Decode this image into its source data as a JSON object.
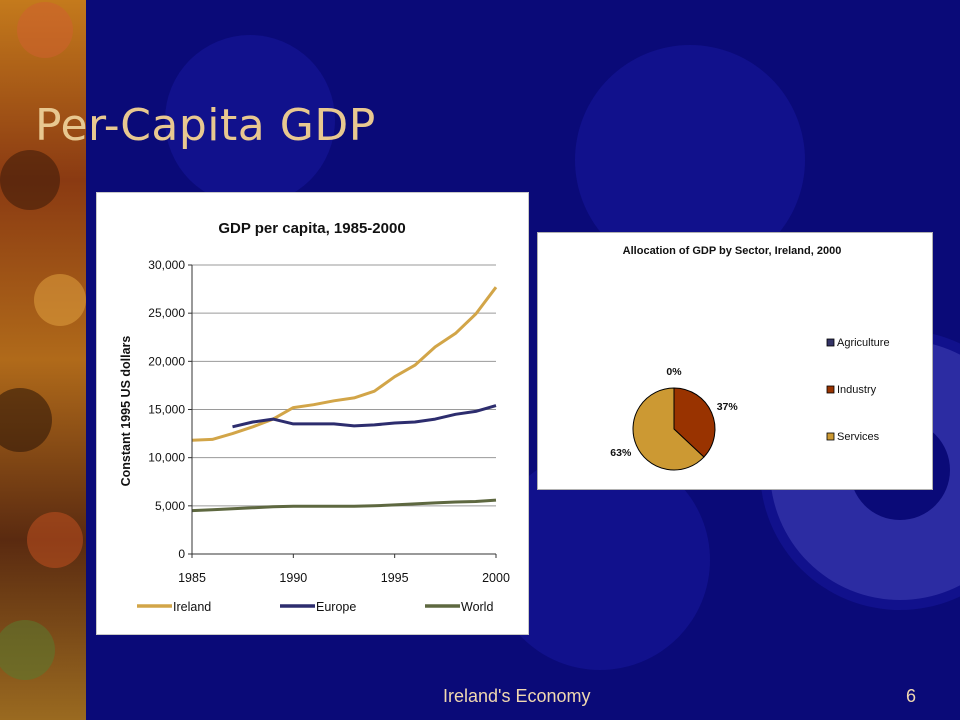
{
  "slide": {
    "title": "Per-Capita GDP",
    "footer": "Ireland's Economy",
    "page_number": "6"
  },
  "chart_data": [
    {
      "type": "line",
      "title": "GDP per capita, 1985-2000",
      "xlabel": "",
      "ylabel": "Constant 1995 US dollars",
      "xlim": [
        1985,
        2000
      ],
      "ylim": [
        0,
        30000
      ],
      "x_ticks": [
        "1985",
        "1990",
        "1995",
        "2000"
      ],
      "y_ticks": [
        "0",
        "5,000",
        "10,000",
        "15,000",
        "20,000",
        "25,000",
        "30,000"
      ],
      "grid": true,
      "legend_position": "bottom",
      "series": [
        {
          "name": "Ireland",
          "color": "#d2a548",
          "x": [
            1985,
            1986,
            1987,
            1988,
            1989,
            1990,
            1991,
            1992,
            1993,
            1994,
            1995,
            1996,
            1997,
            1998,
            1999,
            2000
          ],
          "values": [
            11800,
            11900,
            12500,
            13200,
            14000,
            15200,
            15500,
            15900,
            16200,
            16900,
            18400,
            19600,
            21500,
            22900,
            24900,
            27700
          ]
        },
        {
          "name": "Europe",
          "color": "#2d2d6e",
          "x": [
            1987,
            1988,
            1989,
            1990,
            1991,
            1992,
            1993,
            1994,
            1995,
            1996,
            1997,
            1998,
            1999,
            2000
          ],
          "values": [
            13200,
            13700,
            14000,
            13500,
            13500,
            13500,
            13300,
            13400,
            13600,
            13700,
            14000,
            14500,
            14800,
            15400
          ]
        },
        {
          "name": "World",
          "color": "#5e6840",
          "x": [
            1985,
            1986,
            1987,
            1988,
            1989,
            1990,
            1991,
            1992,
            1993,
            1994,
            1995,
            1996,
            1997,
            1998,
            1999,
            2000
          ],
          "values": [
            4500,
            4600,
            4700,
            4800,
            4900,
            4950,
            4950,
            4950,
            4950,
            5000,
            5100,
            5200,
            5300,
            5400,
            5450,
            5600
          ]
        }
      ]
    },
    {
      "type": "pie",
      "title": "Allocation of GDP by Sector, Ireland, 2000",
      "legend_position": "right",
      "categories": [
        "Agriculture",
        "Industry",
        "Services"
      ],
      "values": [
        0,
        37,
        63
      ],
      "labels": [
        "0%",
        "37%",
        "63%"
      ],
      "colors": [
        "#333366",
        "#993300",
        "#cc9933"
      ]
    }
  ]
}
